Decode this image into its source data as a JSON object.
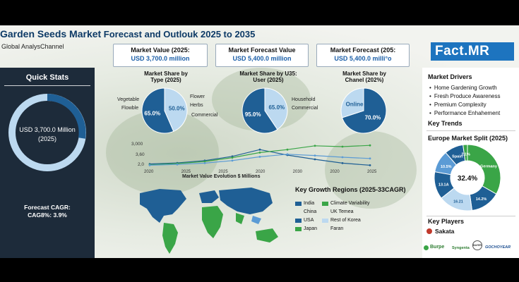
{
  "header": {
    "title_main": "Garden Seeds Market",
    "title_rest": " Forecast and Outlouk 2025 to 2035",
    "subtitle": "Global AnalysChannel",
    "kpis": [
      {
        "label": "Market Value (2025:",
        "value": "USD 3,700.0 million"
      },
      {
        "label": "Market Forecast Value",
        "value": "USD 5,400.0 million"
      },
      {
        "label": "Market Forecast (205:",
        "value": "USD 5,400.0 milli°o"
      }
    ],
    "logo": "Fact",
    "logo_suffix": ".MR"
  },
  "quick_stats": {
    "title": "Quick Stats",
    "value": "USD 3,700.0 Million",
    "year": "(2025)",
    "cagr_label": "Forecast CAGR:",
    "cagr_value": "CAG8%: 3.9%"
  },
  "colors": {
    "dark_blue": "#1f5f95",
    "light_blue": "#bcd9f0",
    "green": "#3aa547",
    "navy": "#1d2b3a",
    "accent": "#1d74bf"
  },
  "right_panel": {
    "drivers_title": "Market Drivers",
    "drivers": [
      "Home Gardening Growth",
      "Fresh Produce Awareness",
      "Premium Complexity",
      "Performance Enhahement"
    ],
    "trends_title": "Key Trends",
    "europe_title": "Europe Market Split (2025)",
    "europe_center": "32.4%",
    "players_title": "Key Players",
    "players": [
      "Sakata",
      "Burpe",
      "Syngenta",
      "BAYER",
      "GOCHOYEAR"
    ]
  },
  "legend_regions": {
    "title": "Key Growth Regions (2025-33CAGR)",
    "col1": [
      "India",
      "China",
      "USA",
      "Japan"
    ],
    "col2": [
      "Climate Variability",
      "UK Temea",
      "Rest of Korea",
      "Faran"
    ]
  },
  "chart_data": [
    {
      "type": "pie",
      "title": "Market Share by Type (2025)",
      "slices": [
        {
          "name": "Vegetable",
          "value": 50.0,
          "label": "50.0%"
        },
        {
          "name": "Flower",
          "value": 65.0,
          "label": "65.0%"
        }
      ],
      "side_labels": [
        "Vegetable",
        "Flowble",
        "Flower",
        "Herbs",
        "Commercial"
      ]
    },
    {
      "type": "pie",
      "title": "Market Share by U35: User (2025)",
      "slices": [
        {
          "name": "Household",
          "value": 65.0,
          "label": "65.0%"
        },
        {
          "name": "Commercial",
          "value": 95.0,
          "label": "95.0%"
        }
      ],
      "side_labels": [
        "Household",
        "Commercial"
      ]
    },
    {
      "type": "pie",
      "title": "Market Share by Chanel (202%)",
      "slices": [
        {
          "name": "Offline",
          "value": 70.0,
          "label": "70.0%"
        },
        {
          "name": "Online",
          "value": 30.0,
          "label": "Online"
        }
      ]
    },
    {
      "type": "line",
      "xlabel": "Market Value Evolution $ Millions",
      "y_ticks": [
        "3,000",
        "3,60",
        "2,0"
      ],
      "x_ticks": [
        "2020",
        "2025",
        "2025",
        "2020",
        "2030",
        "2020",
        "2025"
      ],
      "ylim": [
        0,
        6000
      ],
      "series": [
        {
          "color": "#1f5f95",
          "values": [
            900,
            1150,
            1700,
            2700,
            4300,
            3000,
            2000,
            1100,
            600
          ]
        },
        {
          "color": "#3aa547",
          "values": [
            700,
            1000,
            1500,
            2400,
            3600,
            4300,
            5200,
            5000,
            5300
          ]
        },
        {
          "color": "#5b9bd5",
          "values": [
            600,
            800,
            1100,
            1700,
            2600,
            3200,
            2900,
            2500,
            2200
          ]
        }
      ]
    },
    {
      "type": "pie",
      "title": "Europe Market Split (2025)",
      "slices": [
        {
          "name": "Germany",
          "value": 32.4,
          "label": "Germany"
        },
        {
          "name": "",
          "value": 14.2,
          "label": "14.2%"
        },
        {
          "name": "",
          "value": 16.21,
          "label": "16.21"
        },
        {
          "name": "",
          "value": 13.1,
          "label": "13.1A"
        },
        {
          "name": "",
          "value": 10.5,
          "label": "10.5%"
        },
        {
          "name": "Spain",
          "value": 9.0,
          "label": "Spain"
        },
        {
          "name": "",
          "value": 2.1,
          "label": "2.1%"
        }
      ]
    }
  ]
}
